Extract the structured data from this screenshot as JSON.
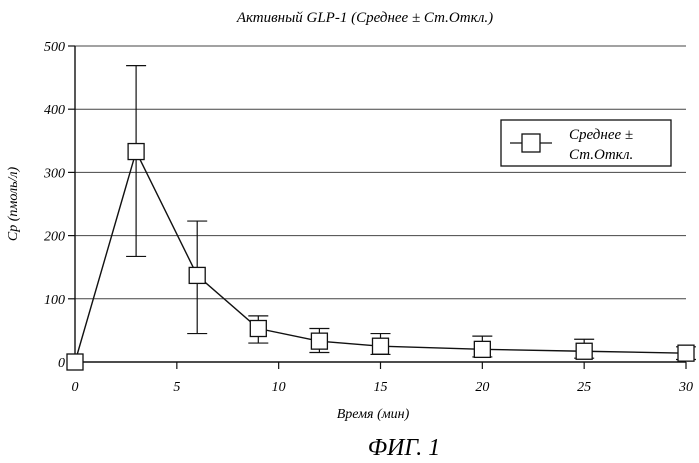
{
  "chart_data": {
    "type": "line",
    "title": "Активный GLP-1 (Среднее ± Ст.Откл.)",
    "xlabel": "Время (мин)",
    "ylabel": "Cp (пмоль/л)",
    "xlim": [
      0,
      30
    ],
    "ylim": [
      0,
      500
    ],
    "x_ticks": [
      "0",
      "5",
      "10",
      "15",
      "20",
      "25",
      "30"
    ],
    "y_ticks": [
      "0",
      "100",
      "200",
      "300",
      "400",
      "500"
    ],
    "grid": "horizontal",
    "legend_position": "top-right",
    "series": [
      {
        "name": "Среднее ± Ст.Откл.",
        "marker": "square",
        "x": [
          0,
          3,
          6,
          9,
          12,
          15,
          20,
          25,
          30
        ],
        "y": [
          0,
          333,
          137,
          53,
          33,
          25,
          20,
          17,
          14
        ],
        "err_low": [
          0,
          167,
          45,
          30,
          15,
          12,
          8,
          6,
          4
        ],
        "err_high": [
          0,
          469,
          223,
          73,
          53,
          45,
          41,
          36,
          24
        ]
      }
    ]
  },
  "legend": {
    "line1": "Среднее ±",
    "line2": "Ст.Откл."
  },
  "caption": "ФИГ. 1"
}
